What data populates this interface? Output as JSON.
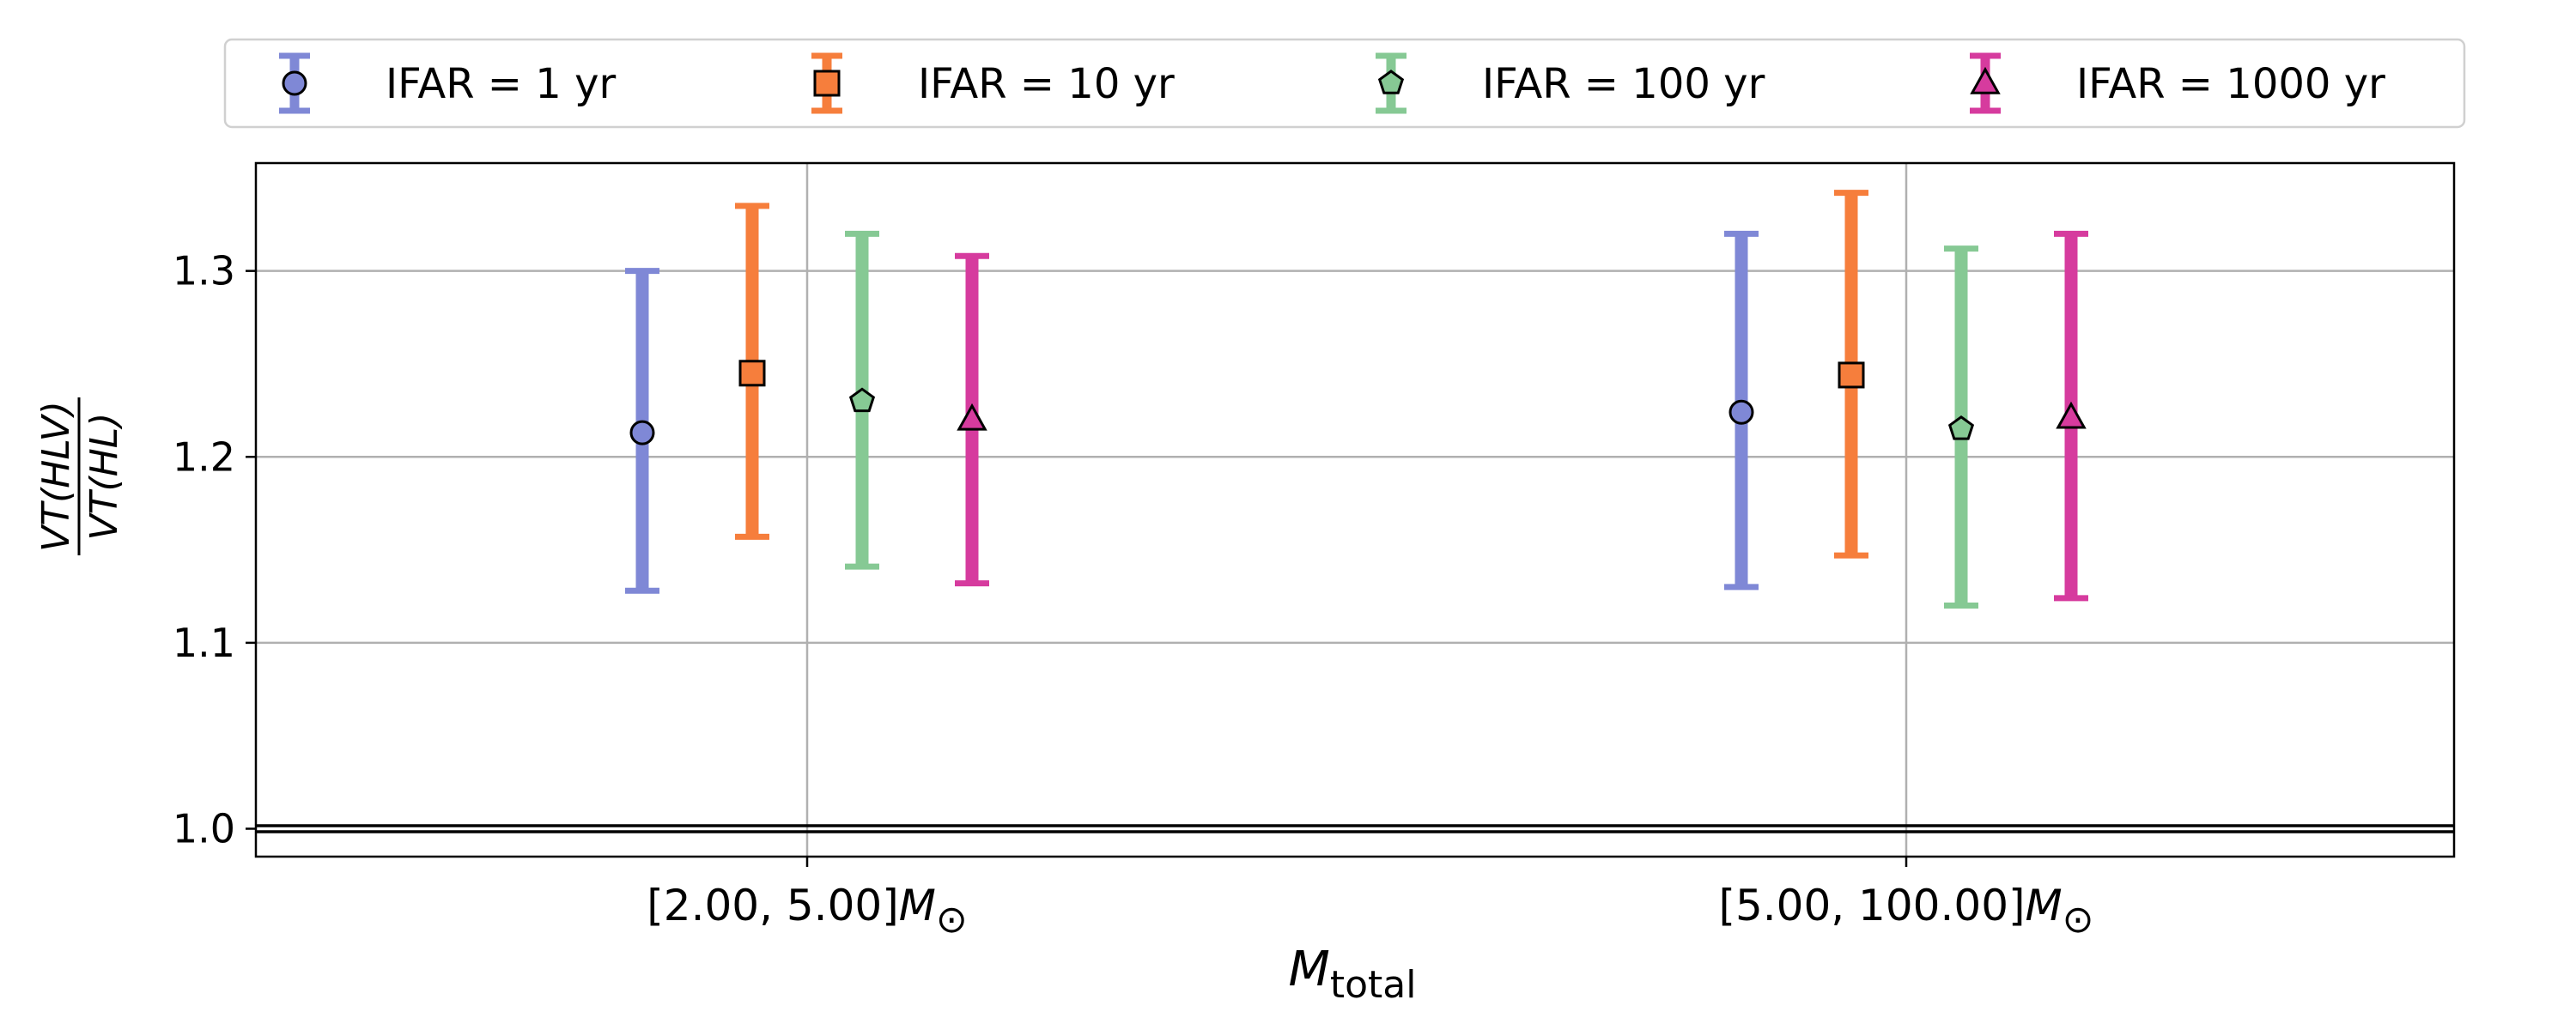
{
  "chart_data": {
    "type": "scatter",
    "title": "",
    "xlabel": {
      "base": "M",
      "sub": "total"
    },
    "ylabel": {
      "numerator": "VT(HLV)",
      "denominator": "VT(HL)"
    },
    "ylim": [
      0.985,
      1.358
    ],
    "yticks": [
      1.0,
      1.1,
      1.2,
      1.3
    ],
    "ytick_labels": [
      "1.0",
      "1.1",
      "1.2",
      "1.3"
    ],
    "categories": [
      {
        "range": "[2.00, 5.00]",
        "unit": "M",
        "unit_sub": "⊙"
      },
      {
        "range": "[5.00, 100.00]",
        "unit": "M",
        "unit_sub": "⊙"
      }
    ],
    "reference_line": 1.0,
    "grid": true,
    "legend_position": "top, outside plot",
    "series": [
      {
        "name": "IFAR = 1 yr",
        "color": "#7f88d6",
        "marker": "circle",
        "values": [
          1.213,
          1.224
        ],
        "lower": [
          1.128,
          1.13
        ],
        "upper": [
          1.3,
          1.32
        ]
      },
      {
        "name": "IFAR = 10 yr",
        "color": "#f67e3c",
        "marker": "square",
        "values": [
          1.245,
          1.244
        ],
        "lower": [
          1.157,
          1.147
        ],
        "upper": [
          1.335,
          1.342
        ]
      },
      {
        "name": "IFAR = 100 yr",
        "color": "#86c994",
        "marker": "pentagon",
        "values": [
          1.23,
          1.215
        ],
        "lower": [
          1.141,
          1.12
        ],
        "upper": [
          1.32,
          1.312
        ]
      },
      {
        "name": "IFAR = 1000 yr",
        "color": "#d63b9e",
        "marker": "triangle",
        "values": [
          1.22,
          1.221
        ],
        "lower": [
          1.132,
          1.124
        ],
        "upper": [
          1.308,
          1.32
        ]
      }
    ]
  }
}
